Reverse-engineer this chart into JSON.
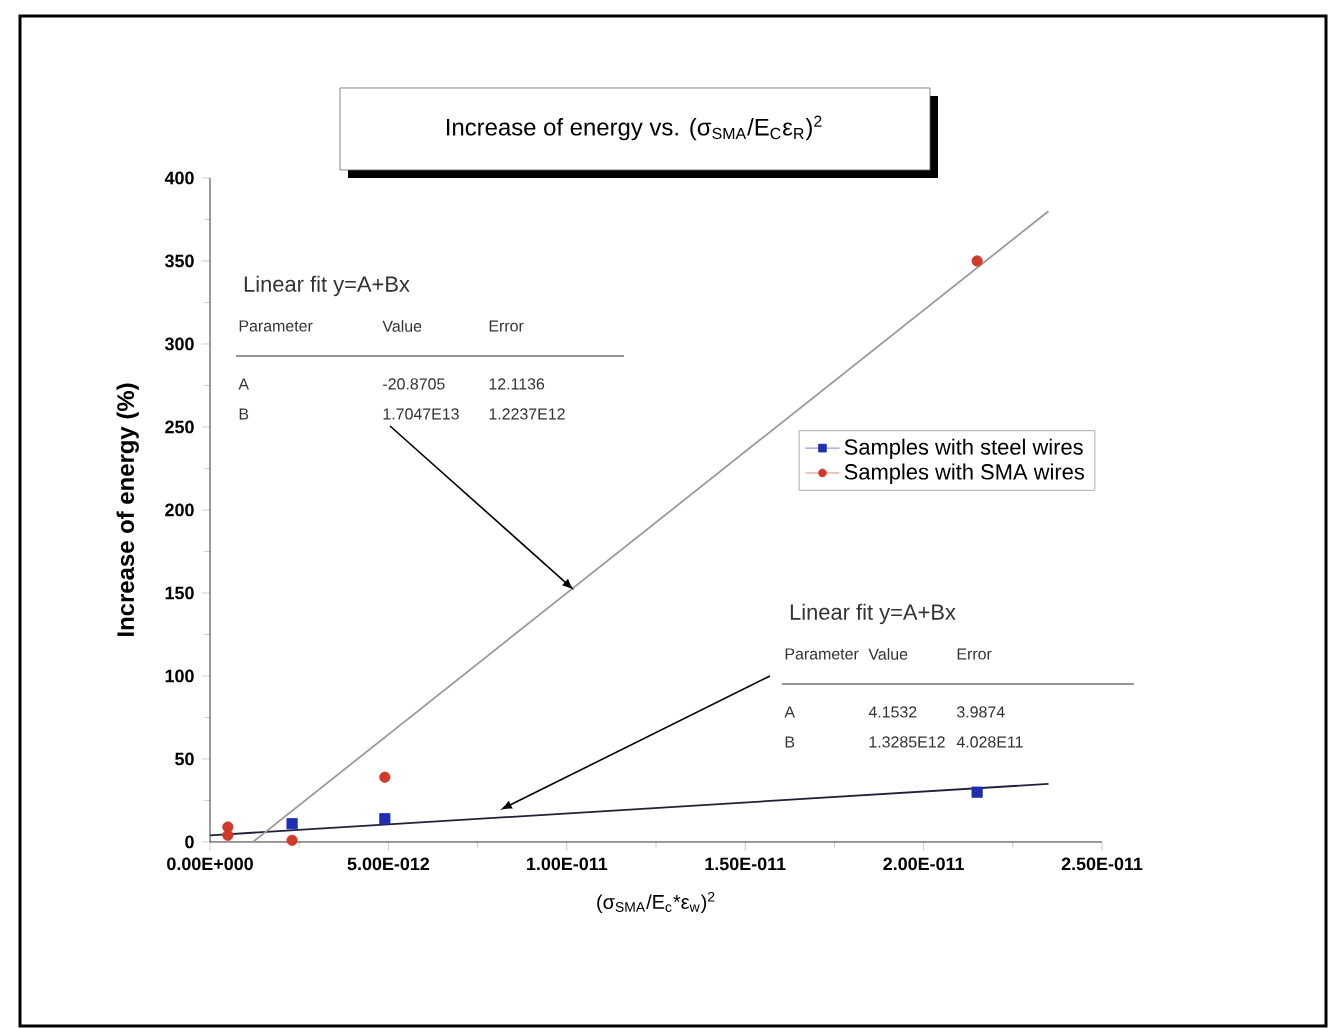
{
  "chart_data": {
    "type": "scatter",
    "title": "Increase of energy vs. (σ$_{SMA}$/E$_{C}$ε$_{R}$)$^{2}$",
    "xlabel": "(σ$_{SMA}$/E$_{c}$*ε$_{w}$)$^{2}$",
    "ylabel": "Increase of energy (%)",
    "xlim": [
      0,
      2.5e-11
    ],
    "xticks": [
      {
        "value": 0,
        "label": "0.00E+000"
      },
      {
        "value": 5e-12,
        "label": "5.00E-012"
      },
      {
        "value": 1e-11,
        "label": "1.00E-011"
      },
      {
        "value": 1.5e-11,
        "label": "1.50E-011"
      },
      {
        "value": 2e-11,
        "label": "2.00E-011"
      },
      {
        "value": 2.5e-11,
        "label": "2.50E-011"
      }
    ],
    "ylim": [
      0,
      400
    ],
    "yticks": [
      0,
      50,
      100,
      150,
      200,
      250,
      300,
      350,
      400
    ],
    "grid": false,
    "legend": "right",
    "marker": "circle",
    "series": [
      {
        "name": "Samples with steel wires",
        "color": "#1f2fb0",
        "marker": "square",
        "x": [
          2.3e-12,
          4.9e-12,
          2.15e-11
        ],
        "values": [
          11,
          14,
          30
        ]
      },
      {
        "name": "Samples with SMA wires",
        "color": "#d03a2a",
        "x": [
          5e-13,
          5e-13,
          2.3e-12,
          4.9e-12,
          2.15e-11
        ],
        "values": [
          9,
          4,
          1,
          39,
          350
        ]
      },
      {
        "type": "line",
        "color": "#20203a",
        "marker": "none",
        "x": [
          0,
          2.35e-11
        ],
        "values": [
          4,
          35
        ]
      },
      {
        "type": "line",
        "color": "#9a9a9a",
        "marker": "none",
        "x": [
          1.2e-12,
          2.35e-11
        ],
        "values": [
          0,
          380
        ]
      }
    ],
    "annotations": [
      "Linear fit y=A+Bx",
      "Parameter",
      "Value",
      "Error",
      "A",
      "-20.8705",
      "12.1136",
      "B",
      "1.7047E13",
      "1.2237E12",
      "Linear fit y=A+Bx",
      "Parameter",
      "Value",
      "Error",
      "A",
      "4.1532",
      "3.9874",
      "B",
      "1.3285E12",
      "4.028E11"
    ]
  }
}
